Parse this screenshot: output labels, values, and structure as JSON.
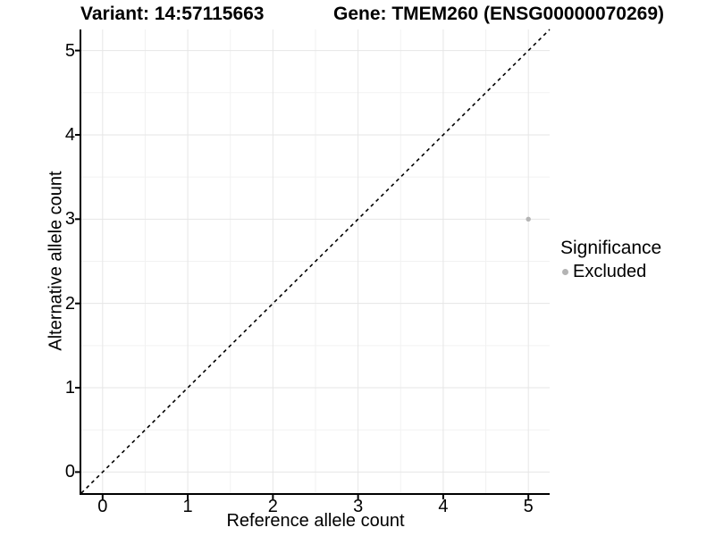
{
  "titles": {
    "variant": "Variant: 14:57115663",
    "gene": "Gene: TMEM260 (ENSG00000070269)"
  },
  "legend": {
    "title": "Significance",
    "items": [
      {
        "label": "Excluded",
        "color": "#b4b4b4"
      }
    ]
  },
  "chart_data": {
    "type": "scatter",
    "title_left": "Variant: 14:57115663",
    "title_right": "Gene: TMEM260 (ENSG00000070269)",
    "xlabel": "Reference allele count",
    "ylabel": "Alternative allele count",
    "xlim": [
      -0.25,
      5.25
    ],
    "ylim": [
      -0.25,
      5.25
    ],
    "x_ticks": [
      0,
      1,
      2,
      3,
      4,
      5
    ],
    "y_ticks": [
      0,
      1,
      2,
      3,
      4,
      5
    ],
    "minor_x": [
      0.5,
      1.5,
      2.5,
      3.5,
      4.5
    ],
    "minor_y": [
      0.5,
      1.5,
      2.5,
      3.5,
      4.5
    ],
    "grid": {
      "major_color": "#e6e6e6",
      "minor_color": "#f2f2f2"
    },
    "reference_line": {
      "type": "identity",
      "equation": "y = x",
      "style": "dashed",
      "color": "#000000"
    },
    "series": [
      {
        "name": "Excluded",
        "color": "#b4b4b4",
        "points": [
          {
            "x": 5,
            "y": 3
          }
        ]
      }
    ],
    "legend_title": "Significance",
    "legend_position": "right"
  }
}
